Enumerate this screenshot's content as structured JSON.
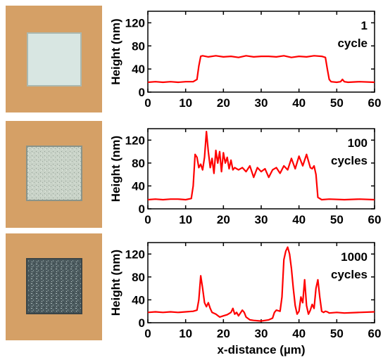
{
  "chart_data": [
    {
      "type": "line",
      "annotation": [
        "1",
        "cycle"
      ],
      "ylabel": "Height (nm)",
      "xlabel": "",
      "xlim": [
        0,
        60
      ],
      "ylim": [
        0,
        140
      ],
      "xticks": [
        0,
        10,
        20,
        30,
        40,
        50,
        60
      ],
      "yticks": [
        0,
        40,
        80,
        120
      ],
      "series": [
        {
          "color": "#ff0000",
          "x": [
            0,
            2,
            4,
            6,
            8,
            10,
            12,
            13,
            13.5,
            14,
            14.5,
            16,
            18,
            20,
            22,
            24,
            26,
            28,
            30,
            32,
            34,
            36,
            38,
            40,
            42,
            44,
            46,
            47,
            47.5,
            48,
            48.5,
            50,
            51,
            51.5,
            52,
            53,
            56,
            60
          ],
          "y": [
            17,
            18,
            17,
            18,
            17,
            18,
            18,
            22,
            45,
            62,
            63,
            61,
            63,
            61,
            62,
            60,
            63,
            61,
            62,
            62,
            61,
            63,
            60,
            62,
            61,
            63,
            62,
            60,
            40,
            22,
            18,
            17,
            18,
            22,
            18,
            17,
            18,
            17
          ]
        }
      ]
    },
    {
      "type": "line",
      "annotation": [
        "100",
        "cycles"
      ],
      "ylabel": "Height (nm)",
      "xlabel": "",
      "xlim": [
        0,
        60
      ],
      "ylim": [
        0,
        140
      ],
      "xticks": [
        0,
        10,
        20,
        30,
        40,
        50,
        60
      ],
      "yticks": [
        0,
        40,
        80,
        120
      ],
      "series": [
        {
          "color": "#ff0000",
          "x": [
            0,
            2,
            4,
            6,
            8,
            10,
            11.5,
            12,
            12.5,
            13,
            13.5,
            14,
            14.5,
            15,
            15.5,
            16,
            16.5,
            17,
            17.5,
            18,
            18.5,
            19,
            19.5,
            20,
            20.5,
            21,
            21.5,
            22,
            22.5,
            23,
            23.5,
            24,
            25,
            26,
            27,
            28,
            29,
            30,
            31,
            32,
            33,
            34,
            35,
            36,
            37,
            38,
            39,
            40,
            41,
            42,
            43,
            43.5,
            44,
            44.5,
            45,
            46,
            48,
            52,
            56,
            60
          ],
          "y": [
            16,
            17,
            16,
            17,
            17,
            16,
            18,
            40,
            95,
            90,
            72,
            78,
            68,
            90,
            135,
            100,
            72,
            88,
            62,
            102,
            80,
            100,
            65,
            98,
            80,
            90,
            70,
            85,
            68,
            72,
            70,
            68,
            72,
            65,
            75,
            55,
            72,
            65,
            70,
            55,
            68,
            72,
            62,
            75,
            68,
            88,
            70,
            92,
            75,
            95,
            72,
            70,
            75,
            60,
            20,
            16,
            17,
            16,
            17,
            16
          ]
        }
      ]
    },
    {
      "type": "line",
      "annotation": [
        "1000",
        "cycles"
      ],
      "ylabel": "Height (nm)",
      "xlabel": "x-distance (µm)",
      "xlim": [
        0,
        60
      ],
      "ylim": [
        0,
        140
      ],
      "xticks": [
        0,
        10,
        20,
        30,
        40,
        50,
        60
      ],
      "yticks": [
        0,
        40,
        80,
        120
      ],
      "series": [
        {
          "color": "#ff0000",
          "x": [
            0,
            2,
            4,
            6,
            8,
            10,
            12,
            13,
            13.5,
            14,
            14.5,
            15,
            15.5,
            16,
            16.5,
            17,
            18,
            19,
            20,
            21,
            22,
            22.5,
            23,
            23.5,
            24,
            25,
            25.5,
            26,
            27,
            28,
            30,
            32,
            33,
            33.5,
            34,
            35,
            35.5,
            36,
            36.5,
            37,
            37.5,
            38,
            38.5,
            39,
            39.5,
            40,
            40.5,
            41,
            41.5,
            42,
            42.5,
            43,
            43.5,
            44,
            44.5,
            45,
            45.5,
            46,
            46.5,
            47,
            47.5,
            48,
            50,
            52,
            56,
            60
          ],
          "y": [
            18,
            19,
            18,
            19,
            18,
            19,
            20,
            22,
            40,
            82,
            60,
            35,
            28,
            35,
            25,
            18,
            15,
            10,
            12,
            14,
            18,
            25,
            15,
            18,
            12,
            22,
            18,
            10,
            5,
            4,
            3,
            5,
            8,
            18,
            22,
            20,
            45,
            110,
            125,
            132,
            120,
            95,
            60,
            30,
            15,
            20,
            45,
            35,
            75,
            30,
            15,
            22,
            32,
            25,
            60,
            75,
            45,
            20,
            18,
            20,
            19,
            17,
            18,
            17,
            18,
            19
          ]
        }
      ]
    }
  ]
}
